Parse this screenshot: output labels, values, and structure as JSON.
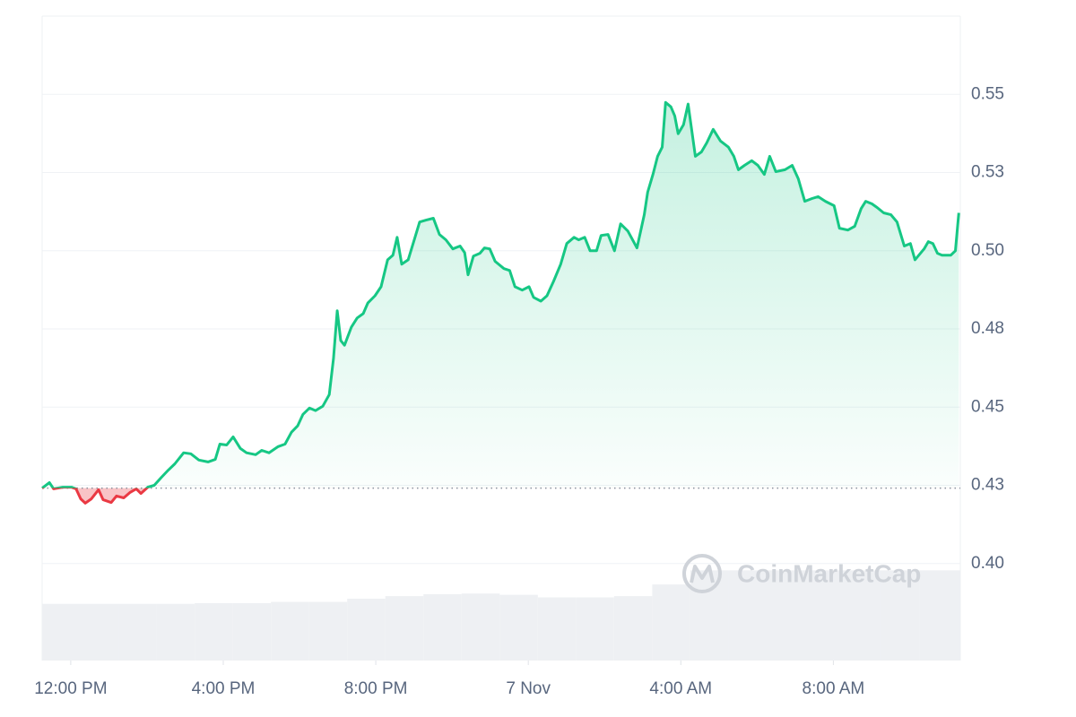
{
  "chart_data": {
    "type": "area",
    "x": [
      -0.75,
      -0.56,
      -0.45,
      -0.21,
      0.02,
      0.14,
      0.26,
      0.38,
      0.54,
      0.73,
      0.85,
      1.06,
      1.2,
      1.39,
      1.55,
      1.72,
      1.84,
      2.02,
      2.19,
      2.38,
      2.56,
      2.73,
      2.96,
      3.15,
      3.36,
      3.6,
      3.79,
      3.91,
      4.09,
      4.26,
      4.45,
      4.61,
      4.85,
      5.01,
      5.2,
      5.44,
      5.62,
      5.79,
      5.95,
      6.09,
      6.26,
      6.42,
      6.61,
      6.78,
      6.89,
      6.99,
      7.08,
      7.18,
      7.36,
      7.51,
      7.67,
      7.79,
      7.98,
      8.14,
      8.31,
      8.45,
      8.56,
      8.68,
      8.85,
      9.01,
      9.15,
      9.32,
      9.51,
      9.67,
      9.84,
      10.02,
      10.21,
      10.33,
      10.42,
      10.56,
      10.73,
      10.85,
      10.99,
      11.13,
      11.36,
      11.51,
      11.65,
      11.84,
      12.02,
      12.14,
      12.33,
      12.49,
      12.66,
      12.85,
      13.01,
      13.2,
      13.32,
      13.48,
      13.62,
      13.79,
      13.91,
      14.09,
      14.26,
      14.42,
      14.61,
      14.85,
      15.04,
      15.13,
      15.27,
      15.39,
      15.51,
      15.6,
      15.74,
      15.84,
      15.93,
      16.07,
      16.19,
      16.38,
      16.54,
      16.68,
      16.85,
      17.04,
      17.25,
      17.39,
      17.51,
      17.67,
      17.86,
      18.02,
      18.19,
      18.33,
      18.49,
      18.73,
      18.92,
      19.08,
      19.25,
      19.44,
      19.6,
      19.79,
      20.02,
      20.16,
      20.38,
      20.56,
      20.73,
      20.85,
      21.01,
      21.15,
      21.32,
      21.51,
      21.67,
      21.86,
      22.02,
      22.14,
      22.38,
      22.49,
      22.61,
      22.73,
      22.85,
      23.08,
      23.2,
      23.29
    ],
    "values": [
      0.4241,
      0.4259,
      0.4239,
      0.4244,
      0.4244,
      0.4239,
      0.4207,
      0.4193,
      0.4207,
      0.4236,
      0.4204,
      0.4195,
      0.4216,
      0.421,
      0.4227,
      0.4239,
      0.4224,
      0.4244,
      0.425,
      0.4276,
      0.4299,
      0.4319,
      0.4354,
      0.4351,
      0.4331,
      0.4325,
      0.4333,
      0.4382,
      0.4379,
      0.4405,
      0.4368,
      0.4354,
      0.4348,
      0.4362,
      0.4354,
      0.4374,
      0.4382,
      0.442,
      0.444,
      0.4477,
      0.4497,
      0.4489,
      0.4503,
      0.454,
      0.4655,
      0.4808,
      0.4713,
      0.4698,
      0.4756,
      0.4785,
      0.4799,
      0.4833,
      0.4856,
      0.4885,
      0.4971,
      0.4986,
      0.5043,
      0.4957,
      0.4971,
      0.5035,
      0.5092,
      0.5098,
      0.5104,
      0.5052,
      0.5035,
      0.5006,
      0.5015,
      0.4994,
      0.4923,
      0.4983,
      0.4992,
      0.5009,
      0.5006,
      0.4966,
      0.4943,
      0.4937,
      0.4885,
      0.4874,
      0.4885,
      0.4851,
      0.4839,
      0.4856,
      0.4902,
      0.4957,
      0.5023,
      0.5043,
      0.5035,
      0.5043,
      0.5,
      0.5,
      0.5049,
      0.5052,
      0.5,
      0.5086,
      0.5063,
      0.5009,
      0.5115,
      0.5187,
      0.5244,
      0.5302,
      0.5331,
      0.5474,
      0.546,
      0.5431,
      0.5374,
      0.5403,
      0.5469,
      0.5302,
      0.5316,
      0.5345,
      0.5388,
      0.5351,
      0.5331,
      0.5302,
      0.5259,
      0.5273,
      0.5288,
      0.5273,
      0.5244,
      0.5302,
      0.5253,
      0.5259,
      0.5273,
      0.523,
      0.5158,
      0.5167,
      0.5173,
      0.5158,
      0.5144,
      0.5072,
      0.5066,
      0.5078,
      0.5135,
      0.5158,
      0.515,
      0.5138,
      0.5121,
      0.5115,
      0.5092,
      0.5015,
      0.5023,
      0.4971,
      0.5006,
      0.5029,
      0.5023,
      0.4992,
      0.4986,
      0.4986,
      0.5,
      0.5121
    ],
    "colors": {
      "up": "#16c784",
      "down": "#ea3943"
    },
    "reference_value": 0.4241,
    "xlim": [
      -0.75,
      23.33
    ],
    "xticks": [
      {
        "value": 0,
        "label": "12:00 PM"
      },
      {
        "value": 4,
        "label": "4:00 PM"
      },
      {
        "value": 8,
        "label": "8:00 PM"
      },
      {
        "value": 12,
        "label": "7 Nov"
      },
      {
        "value": 16,
        "label": "4:00 AM"
      },
      {
        "value": 20,
        "label": "8:00 AM"
      }
    ],
    "ylim": [
      0.369,
      0.575
    ],
    "yticks": [
      {
        "value": 0.4,
        "label": "0.40"
      },
      {
        "value": 0.425,
        "label": "0.43"
      },
      0.45,
      {
        "value": 0.475,
        "label": "0.48"
      },
      {
        "value": 0.5,
        "label": "0.50"
      },
      {
        "value": 0.525,
        "label": "0.53"
      },
      0.55
    ],
    "grid": true,
    "volume": {
      "bins": [
        -0.75,
        0.25,
        1.25,
        2.25,
        3.25,
        4.25,
        5.25,
        6.25,
        7.25,
        8.25,
        9.25,
        10.25,
        11.25,
        12.25,
        13.25,
        14.25,
        15.25,
        16.25,
        17.25,
        18.25,
        19.25,
        20.25,
        21.25,
        22.25,
        23.33
      ],
      "values": [
        8.8,
        8.8,
        8.8,
        8.8,
        8.9,
        8.9,
        9.1,
        9.1,
        9.6,
        10.0,
        10.3,
        10.4,
        10.2,
        9.8,
        9.8,
        10.0,
        11.8,
        14.0,
        14.0,
        14.0,
        14.0,
        14.0,
        14.0,
        14.0
      ],
      "lim": [
        0,
        100
      ],
      "color": "#eef0f3"
    },
    "watermark": "CoinMarketCap"
  }
}
